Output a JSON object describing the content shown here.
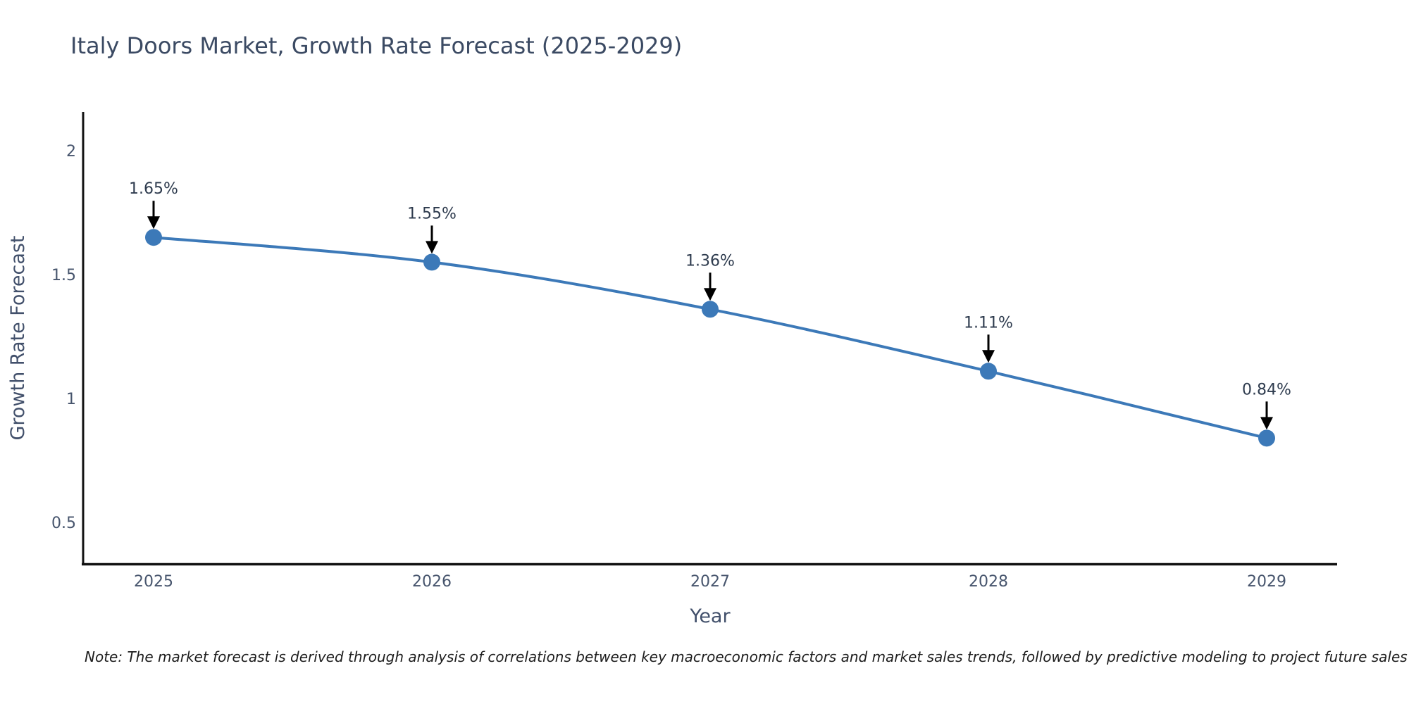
{
  "title": "Italy Doors Market, Growth Rate Forecast (2025-2029)",
  "note": "Note: The market forecast is derived through analysis of correlations between key macroeconomic factors and market sales trends, followed by predictive modeling to project future sales",
  "chart_data": {
    "type": "line",
    "title": "Italy Doors Market, Growth Rate Forecast (2025-2029)",
    "xlabel": "Year",
    "ylabel": "Growth Rate Forecast",
    "categories": [
      "2025",
      "2026",
      "2027",
      "2028",
      "2029"
    ],
    "values": [
      1.65,
      1.55,
      1.36,
      1.11,
      0.84
    ],
    "point_labels": [
      "1.65%",
      "1.55%",
      "1.36%",
      "1.11%",
      "0.84%"
    ],
    "yticks": [
      2,
      1.5,
      1,
      0.5
    ],
    "ytick_labels": [
      "2",
      "1.5",
      "1",
      "0.5"
    ],
    "ylim": [
      0.33,
      2.17
    ],
    "grid": false,
    "legend": "none",
    "line_shape": "spline",
    "marker": "circle",
    "annotation_arrow": "down",
    "colors": {
      "line": "#3c79b8",
      "marker": "#3c79b8",
      "arrow": "#000000",
      "axis": "#111111",
      "title_text": "#3b4a63",
      "tick_text": "#47556d",
      "annotation_text": "#2e3b4e",
      "background": "#ffffff"
    }
  }
}
